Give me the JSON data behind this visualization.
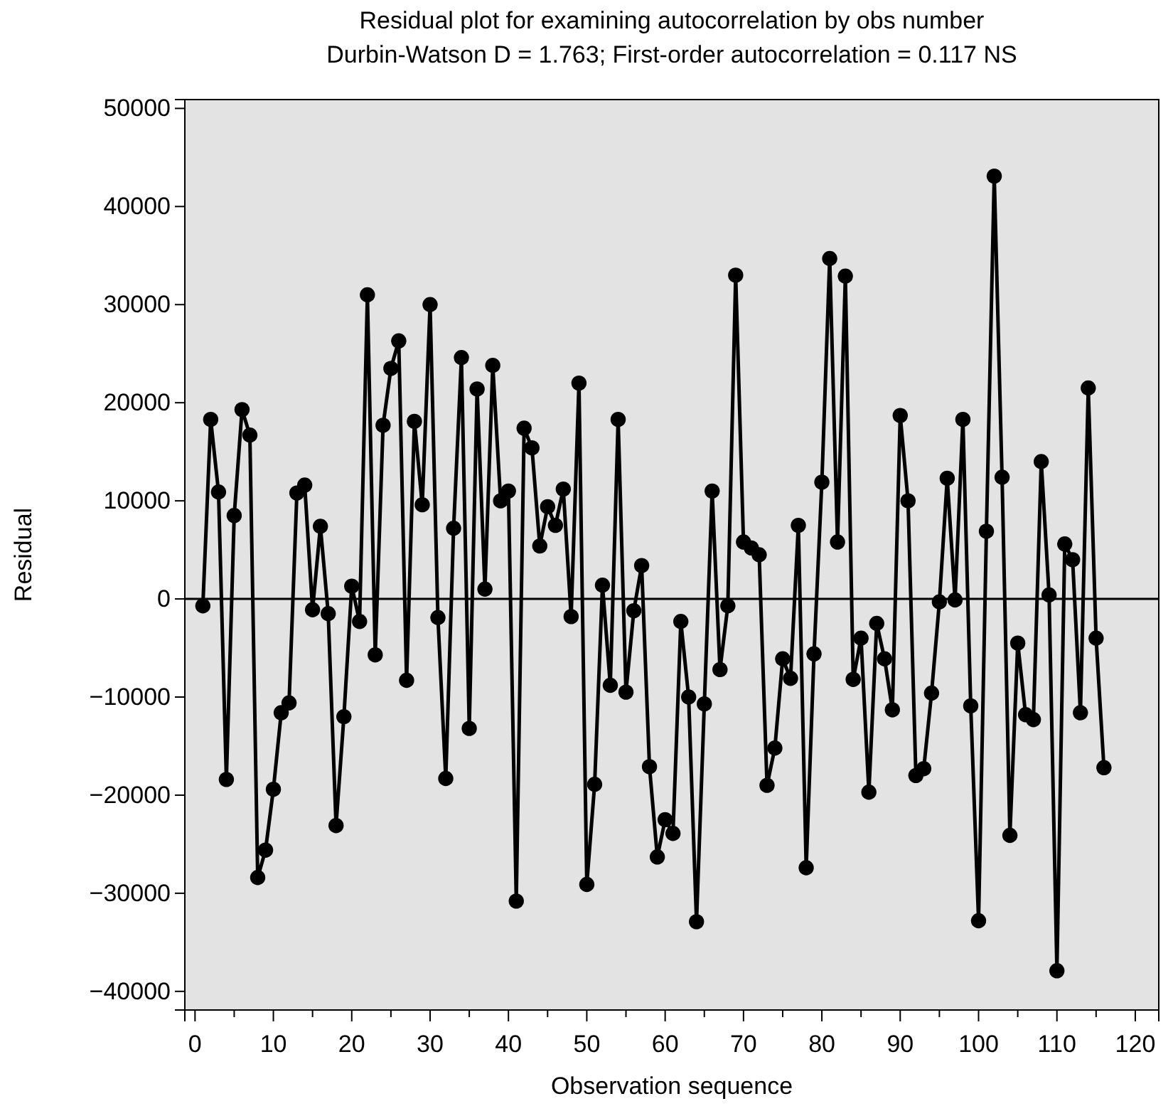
{
  "chart_data": {
    "type": "line",
    "title": "Residual plot for examining autocorrelation by obs number",
    "subtitle": "Durbin-Watson D = 1.763; First-order autocorrelation = 0.117 NS",
    "xlabel": "Observation sequence",
    "ylabel": "Residual",
    "x": [
      1,
      2,
      3,
      4,
      5,
      6,
      7,
      8,
      9,
      10,
      11,
      12,
      13,
      14,
      15,
      16,
      17,
      18,
      19,
      20,
      21,
      22,
      23,
      24,
      25,
      26,
      27,
      28,
      29,
      30,
      31,
      32,
      33,
      34,
      35,
      36,
      37,
      38,
      39,
      40,
      41,
      42,
      43,
      44,
      45,
      46,
      47,
      48,
      49,
      50,
      51,
      52,
      53,
      54,
      55,
      56,
      57,
      58,
      59,
      60,
      61,
      62,
      63,
      64,
      65,
      66,
      67,
      68,
      69,
      70,
      71,
      72,
      73,
      74,
      75,
      76,
      77,
      78,
      79,
      80,
      81,
      82,
      83,
      84,
      85,
      86,
      87,
      88,
      89,
      90,
      91,
      92,
      93,
      94,
      95,
      96,
      97,
      98,
      99,
      100,
      101,
      102,
      103,
      104,
      105,
      106,
      107,
      108,
      109,
      110,
      111,
      112,
      113,
      114,
      115,
      116
    ],
    "series": [
      {
        "color": "#000000",
        "values": [
          -700,
          18300,
          10900,
          -18400,
          8500,
          19300,
          16700,
          -28400,
          -25600,
          -19400,
          -11600,
          -10600,
          10800,
          11600,
          -1100,
          7400,
          -1500,
          -23100,
          -12000,
          1300,
          -2300,
          31000,
          -5700,
          17700,
          23500,
          26300,
          -8300,
          18100,
          9600,
          30000,
          -1900,
          -18300,
          7200,
          24600,
          -13200,
          21400,
          1000,
          23800,
          10000,
          11000,
          -30800,
          17400,
          15400,
          5400,
          9400,
          7500,
          11200,
          -1800,
          22000,
          -29100,
          -18900,
          1400,
          -8800,
          18300,
          -9500,
          -1200,
          3400,
          -17100,
          -26300,
          -22500,
          -23900,
          -2300,
          -10000,
          -32900,
          -10700,
          11000,
          -7200,
          -700,
          33000,
          5800,
          5200,
          4500,
          -19000,
          -15200,
          -6100,
          -8100,
          7500,
          -27400,
          -5600,
          11900,
          34700,
          5800,
          32900,
          -8200,
          -4000,
          -19700,
          -2500,
          -6100,
          -11300,
          18700,
          10000,
          -18000,
          -17300,
          -9600,
          -300,
          12300,
          -100,
          18300,
          -10900,
          -32800,
          6900,
          43100,
          12400,
          -24100,
          -4500,
          -11800,
          -12300,
          14000,
          400,
          -37900,
          5600,
          4000,
          -11600,
          21500,
          -4000,
          -17200
        ]
      }
    ],
    "xlim": [
      -1.3,
      123
    ],
    "ylim": [
      -41900,
      50900
    ],
    "xticks": [
      0,
      {
        "value": 5,
        "label": null
      },
      10,
      {
        "value": 15,
        "label": null
      },
      20,
      {
        "value": 25,
        "label": null
      },
      30,
      {
        "value": 35,
        "label": null
      },
      40,
      {
        "value": 45,
        "label": null
      },
      50,
      {
        "value": 55,
        "label": null
      },
      60,
      {
        "value": 65,
        "label": null
      },
      70,
      {
        "value": 75,
        "label": null
      },
      80,
      {
        "value": 85,
        "label": null
      },
      90,
      {
        "value": 95,
        "label": null
      },
      100,
      {
        "value": 105,
        "label": null
      },
      110,
      {
        "value": 115,
        "label": null
      },
      120
    ],
    "yticks": [
      -40000,
      -30000,
      -20000,
      -10000,
      0,
      10000,
      20000,
      30000,
      40000,
      50000
    ],
    "ref_lines": [
      {
        "axis": "y",
        "value": 0,
        "color": "#000000"
      }
    ],
    "marker": "circle",
    "line_style": "solid",
    "grid": false
  }
}
